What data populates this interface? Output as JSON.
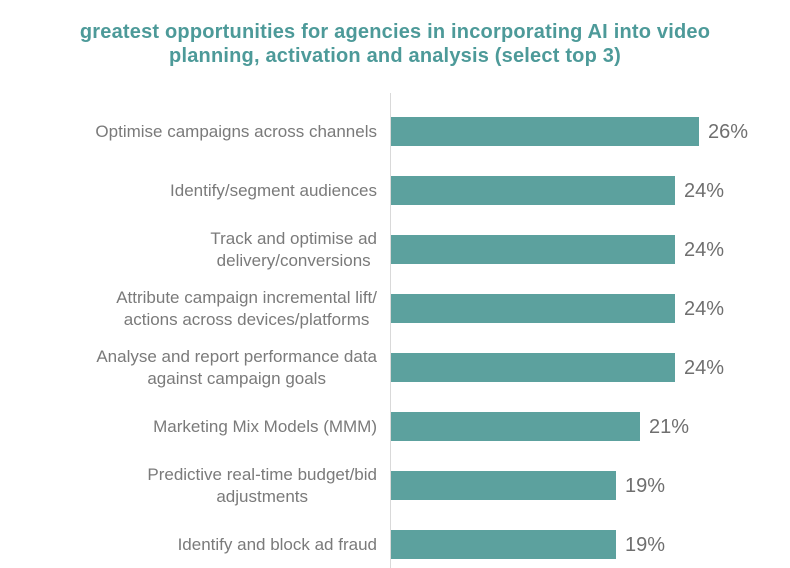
{
  "header": {
    "title_display": "greatest opportunities for agencies in incorporating AI into video\nplanning, activation and analysis (select top 3)"
  },
  "chart_data": {
    "type": "bar",
    "orientation": "horizontal",
    "title": "greatest opportunities for agencies in incorporating AI into video planning, activation and analysis (select top 3)",
    "categories": [
      "Optimise campaigns across channels",
      "Identify/segment audiences",
      "Track and optimise ad delivery/conversions",
      "Attribute campaign incremental lift/ actions across devices/platforms",
      "Analyse and report performance data against campaign goals",
      "Marketing Mix Models (MMM)",
      "Predictive real-time budget/bid adjustments",
      "Identify and block ad fraud"
    ],
    "categories_display": [
      "Optimise campaigns across channels",
      "Identify/segment audiences",
      "Track and optimise ad\ndelivery/conversions",
      "Attribute campaign incremental lift/\nactions across devices/platforms",
      "Analyse and report performance data\nagainst campaign goals",
      "Marketing Mix Models (MMM)",
      "Predictive real-time budget/bid\nadjustments",
      "Identify and block ad fraud"
    ],
    "values": [
      26,
      24,
      24,
      24,
      24,
      21,
      19,
      19
    ],
    "data_labels": [
      "26%",
      "24%",
      "24%",
      "24%",
      "24%",
      "21%",
      "19%",
      "19%"
    ],
    "value_suffix": "%",
    "xlim": [
      0,
      30
    ],
    "grid": false,
    "legend": "none",
    "colors": {
      "bar": "#5CA19E",
      "title": "#4D9A99",
      "category_label": "#7A7A7A",
      "value_label": "#6F6F6F",
      "axis_line": "#D9D9D9",
      "background": "#FFFFFF"
    }
  }
}
